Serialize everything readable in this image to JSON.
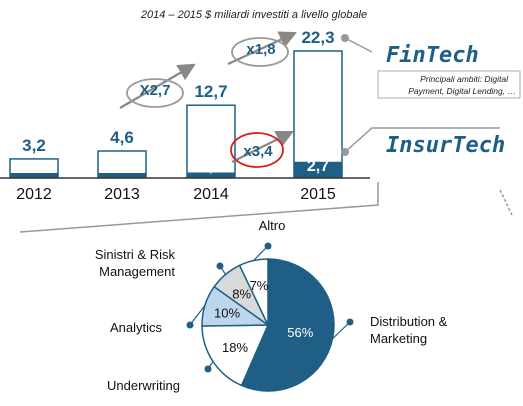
{
  "title": "2014 – 2015 $ miliardi investiti a livello globale",
  "colors": {
    "dark": "#1f5f86",
    "light_blue": "#bcd6ee",
    "gray": "#d9d9d9",
    "white": "#ffffff",
    "red": "#d42020"
  },
  "chart_data": [
    {
      "type": "bar",
      "categories": [
        "2012",
        "2013",
        "2014",
        "2015"
      ],
      "series": [
        {
          "name": "FinTech",
          "values": [
            3.2,
            4.6,
            12.7,
            22.3
          ],
          "labels": [
            "3,2",
            "4,6",
            "12,7",
            "22,3"
          ]
        },
        {
          "name": "InsurTech",
          "values": [
            null,
            null,
            0.8,
            2.7
          ],
          "labels": [
            "",
            "",
            "0,8",
            "2,7"
          ]
        }
      ],
      "growth_labels": [
        "X2,7",
        "x1,8",
        "x3,4"
      ],
      "annotations": {
        "fintech_label": "FinTech",
        "fintech_note_line1": "Principali ambiti: Digital",
        "fintech_note_line2": "Payment, Digital Lending, …",
        "insurtech_label": "InsurTech"
      },
      "ylim": [
        0,
        24
      ]
    },
    {
      "type": "pie",
      "slices": [
        {
          "name": "Distribution & Marketing",
          "name_line1": "Distribution &",
          "name_line2": "Marketing",
          "value": 56,
          "label": "56%",
          "color": "#1f5f86"
        },
        {
          "name": "Underwriting",
          "name_line1": "Underwriting",
          "name_line2": "",
          "value": 18,
          "label": "18%",
          "color": "#ffffff"
        },
        {
          "name": "Analytics",
          "name_line1": "Analytics",
          "name_line2": "",
          "value": 10,
          "label": "10%",
          "color": "#bcd6ee"
        },
        {
          "name": "Sinistri & Risk Management",
          "name_line1": "Sinistri & Risk",
          "name_line2": "Management",
          "value": 8,
          "label": "8%",
          "color": "#d9d9d9"
        },
        {
          "name": "Altro",
          "name_line1": "Altro",
          "name_line2": "",
          "value": 7,
          "label": "7%",
          "color": "#ffffff"
        }
      ]
    }
  ]
}
